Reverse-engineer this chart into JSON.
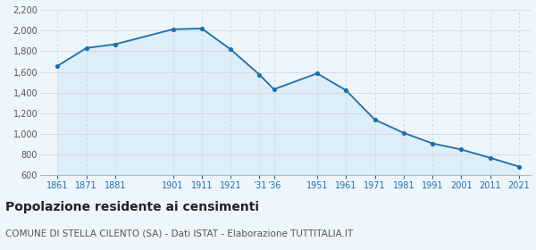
{
  "years": [
    1861,
    1871,
    1881,
    1901,
    1911,
    1921,
    1931,
    1936,
    1951,
    1961,
    1971,
    1981,
    1991,
    2001,
    2011,
    2021
  ],
  "population": [
    1658,
    1831,
    1868,
    2013,
    2021,
    1818,
    1573,
    1431,
    1585,
    1421,
    1136,
    1008,
    906,
    847,
    766,
    681
  ],
  "x_tick_positions": [
    1861,
    1871,
    1881,
    1901,
    1911,
    1921,
    1931,
    1936,
    1951,
    1961,
    1971,
    1981,
    1991,
    2001,
    2011,
    2021
  ],
  "x_tick_labels": [
    "1861",
    "1871",
    "1881",
    "1901",
    "1911",
    "1921",
    "’31",
    "’36",
    "1951",
    "1961",
    "1971",
    "1981",
    "1991",
    "2001",
    "2011",
    "2021"
  ],
  "ylim": [
    600,
    2200
  ],
  "yticks": [
    600,
    800,
    1000,
    1200,
    1400,
    1600,
    1800,
    2000,
    2200
  ],
  "line_color": "#1a6faf",
  "fill_color": "#ddeef8",
  "marker_color": "#1a6faf",
  "bg_color": "#eef6fc",
  "grid_color_h": "#d0d8e0",
  "grid_color_v": "#c8d4dc",
  "title": "Popolazione residente ai censimenti",
  "subtitle": "COMUNE DI STELLA CILENTO (SA) - Dati ISTAT - Elaborazione TUTTITALIA.IT",
  "title_fontsize": 10,
  "subtitle_fontsize": 7.5,
  "tick_fontsize": 7,
  "ytick_fontsize": 7,
  "tick_color_x": "#1a6faf",
  "tick_color_y": "#555555",
  "xlim": [
    1855,
    2025
  ]
}
